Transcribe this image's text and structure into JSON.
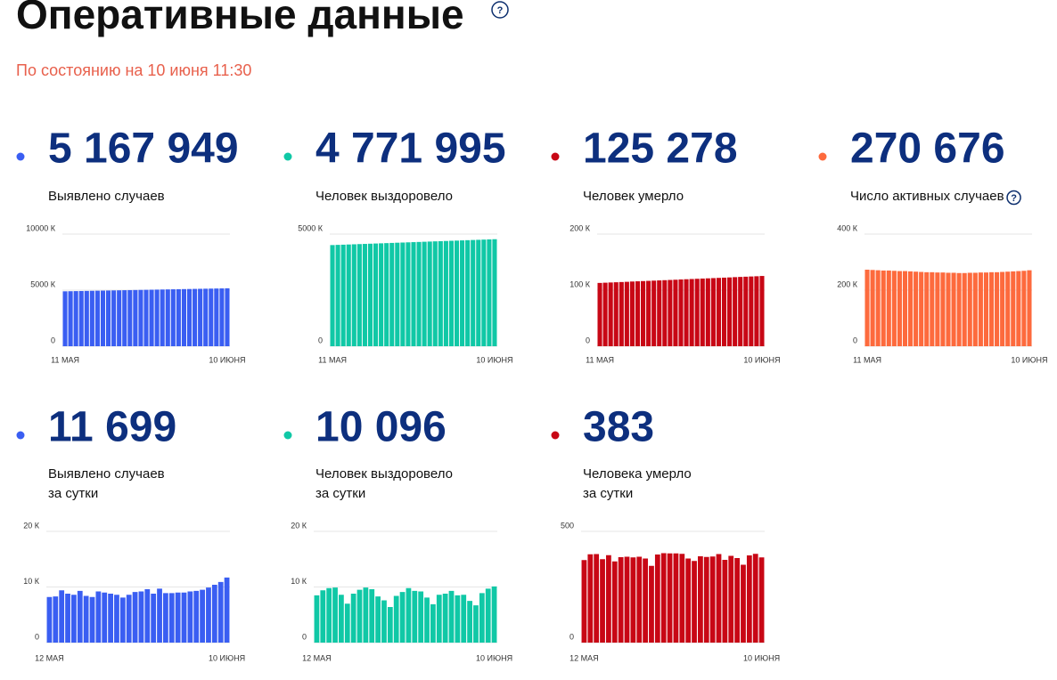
{
  "header": {
    "title": "Оперативные данные",
    "subtitle": "По состоянию на 10 июня 11:30"
  },
  "chart_data": [
    {
      "type": "bar",
      "title": "5 167 949",
      "subtitle": [
        "Выявлено случаев"
      ],
      "color": "#3a5ef2",
      "categories": [
        "11 МАЯ",
        null,
        null,
        null,
        null,
        null,
        null,
        null,
        null,
        null,
        null,
        null,
        null,
        null,
        null,
        null,
        null,
        null,
        null,
        null,
        null,
        null,
        null,
        null,
        null,
        null,
        null,
        null,
        null,
        null,
        "10 ИЮНЯ"
      ],
      "values": [
        4896,
        4905,
        4914,
        4923,
        4932,
        4941,
        4950,
        4959,
        4968,
        4977,
        4986,
        4995,
        5004,
        5013,
        5022,
        5031,
        5040,
        5049,
        5058,
        5067,
        5076,
        5085,
        5094,
        5103,
        5112,
        5121,
        5130,
        5139,
        5148,
        5157,
        5168
      ],
      "ylim": [
        0,
        10000
      ],
      "yticks": [
        0,
        {
          "value": 5000,
          "label": "5000 К"
        },
        {
          "value": 10000,
          "label": "10000 К"
        }
      ],
      "grid": true
    },
    {
      "type": "bar",
      "title": "4 771 995",
      "subtitle": [
        "Человек выздоровело"
      ],
      "color": "#10c8a6",
      "categories": [
        "11 МАЯ",
        null,
        null,
        null,
        null,
        null,
        null,
        null,
        null,
        null,
        null,
        null,
        null,
        null,
        null,
        null,
        null,
        null,
        null,
        null,
        null,
        null,
        null,
        null,
        null,
        null,
        null,
        null,
        null,
        null,
        "10 ИЮНЯ"
      ],
      "values": [
        4510,
        4519,
        4527,
        4536,
        4545,
        4554,
        4562,
        4571,
        4580,
        4588,
        4597,
        4606,
        4615,
        4623,
        4632,
        4641,
        4649,
        4658,
        4667,
        4676,
        4684,
        4693,
        4702,
        4710,
        4719,
        4728,
        4737,
        4745,
        4754,
        4763,
        4772
      ],
      "ylim": [
        0,
        5000
      ],
      "yticks": [
        0,
        {
          "value": 5000,
          "label": "5000 К"
        }
      ],
      "grid": true
    },
    {
      "type": "bar",
      "title": "125 278",
      "subtitle": [
        "Человек умерло"
      ],
      "color": "#c80715",
      "categories": [
        "11 МАЯ",
        null,
        null,
        null,
        null,
        null,
        null,
        null,
        null,
        null,
        null,
        null,
        null,
        null,
        null,
        null,
        null,
        null,
        null,
        null,
        null,
        null,
        null,
        null,
        null,
        null,
        null,
        null,
        null,
        null,
        "10 ИЮНЯ"
      ],
      "values": [
        112.9,
        113.3,
        113.7,
        114.1,
        114.5,
        114.9,
        115.4,
        115.8,
        116.2,
        116.6,
        117.0,
        117.4,
        117.8,
        118.2,
        118.6,
        119.1,
        119.5,
        119.9,
        120.3,
        120.7,
        121.1,
        121.5,
        121.9,
        122.3,
        122.7,
        123.2,
        123.6,
        124.0,
        124.4,
        124.8,
        125.3
      ],
      "ylim": [
        0,
        200
      ],
      "yticks": [
        0,
        {
          "value": 100,
          "label": "100 К"
        },
        {
          "value": 200,
          "label": "200 К"
        }
      ],
      "grid": true
    },
    {
      "type": "bar",
      "title": "270 676",
      "subtitle": [
        "Число активных случаев"
      ],
      "color": "#fd6a3d",
      "categories": [
        "11 МАЯ",
        null,
        null,
        null,
        null,
        null,
        null,
        null,
        null,
        null,
        null,
        null,
        null,
        null,
        null,
        null,
        null,
        null,
        null,
        null,
        null,
        null,
        null,
        null,
        null,
        null,
        null,
        null,
        null,
        null,
        "10 ИЮНЯ"
      ],
      "values": [
        273,
        272,
        271,
        270,
        270,
        269,
        268,
        268,
        267,
        266,
        265,
        264,
        264,
        263,
        263,
        262,
        262,
        261,
        261,
        262,
        262,
        263,
        263,
        264,
        264,
        265,
        266,
        267,
        268,
        269,
        271
      ],
      "ylim": [
        0,
        400
      ],
      "yticks": [
        0,
        {
          "value": 200,
          "label": "200 К"
        },
        {
          "value": 400,
          "label": "400 К"
        }
      ],
      "grid": true
    },
    {
      "type": "bar",
      "title": "11 699",
      "subtitle": [
        "Выявлено случаев",
        "за сутки"
      ],
      "color": "#3a5ef2",
      "categories": [
        "12 МАЯ",
        null,
        null,
        null,
        null,
        null,
        null,
        null,
        null,
        null,
        null,
        null,
        null,
        null,
        null,
        null,
        null,
        null,
        null,
        null,
        null,
        null,
        null,
        null,
        null,
        null,
        null,
        null,
        null,
        "10 ИЮНЯ"
      ],
      "values": [
        8.2,
        8.3,
        9.4,
        8.8,
        8.6,
        9.3,
        8.4,
        8.2,
        9.2,
        9.0,
        8.8,
        8.6,
        8.1,
        8.6,
        9.1,
        9.2,
        9.6,
        8.8,
        9.7,
        8.9,
        8.9,
        9.0,
        9.0,
        9.2,
        9.3,
        9.5,
        9.9,
        10.4,
        10.9,
        11.7
      ],
      "ylim": [
        0,
        20
      ],
      "yticks": [
        0,
        {
          "value": 10,
          "label": "10 К"
        },
        {
          "value": 20,
          "label": "20 К"
        }
      ],
      "grid": true
    },
    {
      "type": "bar",
      "title": "10 096",
      "subtitle": [
        "Человек выздоровело",
        "за сутки"
      ],
      "color": "#10c8a6",
      "categories": [
        "12 МАЯ",
        null,
        null,
        null,
        null,
        null,
        null,
        null,
        null,
        null,
        null,
        null,
        null,
        null,
        null,
        null,
        null,
        null,
        null,
        null,
        null,
        null,
        null,
        null,
        null,
        null,
        null,
        null,
        null,
        "10 ИЮНЯ"
      ],
      "values": [
        8.5,
        9.4,
        9.8,
        9.9,
        8.6,
        7.0,
        8.8,
        9.5,
        9.9,
        9.6,
        8.3,
        7.6,
        6.4,
        8.4,
        9.1,
        9.8,
        9.3,
        9.2,
        8.1,
        6.9,
        8.6,
        8.8,
        9.3,
        8.5,
        8.6,
        7.5,
        6.7,
        8.9,
        9.7,
        10.1
      ],
      "ylim": [
        0,
        20
      ],
      "yticks": [
        0,
        {
          "value": 10,
          "label": "10 К"
        },
        {
          "value": 20,
          "label": "20 К"
        }
      ],
      "grid": true
    },
    {
      "type": "bar",
      "title": "383",
      "subtitle": [
        "Человека умерло",
        "за сутки"
      ],
      "color": "#c80715",
      "categories": [
        "12 МАЯ",
        null,
        null,
        null,
        null,
        null,
        null,
        null,
        null,
        null,
        null,
        null,
        null,
        null,
        null,
        null,
        null,
        null,
        null,
        null,
        null,
        null,
        null,
        null,
        null,
        null,
        null,
        null,
        null,
        "10 ИЮНЯ"
      ],
      "values": [
        371,
        397,
        398,
        375,
        393,
        365,
        384,
        386,
        383,
        386,
        378,
        345,
        396,
        402,
        401,
        401,
        399,
        378,
        367,
        388,
        385,
        387,
        398,
        372,
        390,
        380,
        350,
        392,
        399,
        383
      ],
      "ylim": [
        0,
        500
      ],
      "yticks": [
        0,
        500
      ],
      "grid": true
    }
  ]
}
